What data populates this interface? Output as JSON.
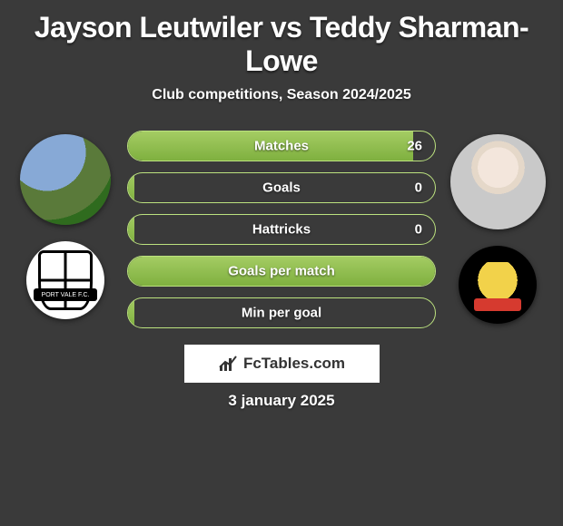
{
  "header": {
    "title": "Jayson Leutwiler vs Teddy Sharman-Lowe",
    "subtitle": "Club competitions, Season 2024/2025"
  },
  "stats": [
    {
      "label": "Matches",
      "value": "26",
      "fill_pct": 93,
      "show_value": true
    },
    {
      "label": "Goals",
      "value": "0",
      "fill_pct": 2,
      "show_value": true
    },
    {
      "label": "Hattricks",
      "value": "0",
      "fill_pct": 2,
      "show_value": true
    },
    {
      "label": "Goals per match",
      "value": "",
      "fill_pct": 100,
      "show_value": false
    },
    {
      "label": "Min per goal",
      "value": "",
      "fill_pct": 2,
      "show_value": false
    }
  ],
  "badge": {
    "text": "FcTables.com"
  },
  "date": "3 january 2025",
  "left_player": {
    "name": "jayson-leutwiler",
    "club": "port-vale"
  },
  "right_player": {
    "name": "teddy-sharman-lowe",
    "club": "doncaster"
  },
  "style": {
    "bg": "#3a3a3a",
    "bar_border": "#bce27f",
    "bar_fill_top": "#a4cc63",
    "bar_fill_bottom": "#7fb03f",
    "title_fontsize": 32,
    "subtitle_fontsize": 16,
    "label_fontsize": 15
  }
}
